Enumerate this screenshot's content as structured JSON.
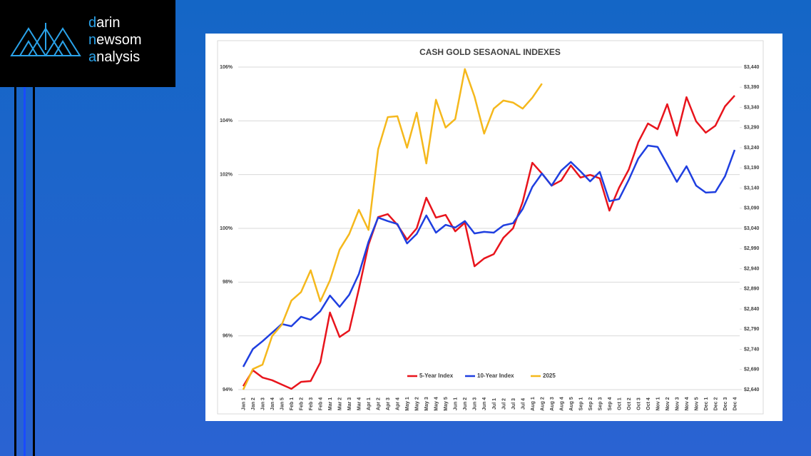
{
  "logo": {
    "lines": [
      "darin",
      "newsom",
      "analysis"
    ]
  },
  "chart_data": {
    "type": "line",
    "title": "CASH GOLD SESAONAL INDEXES",
    "categories": [
      "Jan 1",
      "Jan 2",
      "Jan 3",
      "Jan 4",
      "Jan 5",
      "Feb 1",
      "Feb 2",
      "Feb 3",
      "Feb 4",
      "Mar 1",
      "Mar 2",
      "Mar 3",
      "Mar 4",
      "Apr 1",
      "Apr 2",
      "Apr 3",
      "Apr 4",
      "May 1",
      "May 2",
      "May 3",
      "May 4",
      "May 5",
      "Jun 1",
      "Jun 2",
      "Jun 3",
      "Jun 4",
      "Jul 1",
      "Jul 2",
      "Jul 3",
      "Jul 4",
      "Aug 1",
      "Aug 2",
      "Aug 3",
      "Aug 4",
      "Aug 5",
      "Sep 1",
      "Sep 2",
      "Sep 3",
      "Sep 4",
      "Oct 1",
      "Oct 2",
      "Oct 3",
      "Oct 4",
      "Nov 1",
      "Nov 2",
      "Nov 3",
      "Nov 4",
      "Nov 5",
      "Dec 1",
      "Dec 2",
      "Dec 3",
      "Dec 4"
    ],
    "series": [
      {
        "name": "5-Year Index",
        "color": "#e8141c",
        "values": [
          94.13,
          94.72,
          94.45,
          94.35,
          94.19,
          94.03,
          94.29,
          94.32,
          95.01,
          96.87,
          95.96,
          96.2,
          97.74,
          99.39,
          100.42,
          100.53,
          100.13,
          99.58,
          100.0,
          101.14,
          100.4,
          100.5,
          99.89,
          100.21,
          98.59,
          98.88,
          99.04,
          99.65,
          100.0,
          100.98,
          102.44,
          102.04,
          101.59,
          101.78,
          102.34,
          101.89,
          101.99,
          101.86,
          100.66,
          101.51,
          102.18,
          103.21,
          103.9,
          103.69,
          104.62,
          103.45,
          104.88,
          103.98,
          103.56,
          103.82,
          104.54,
          104.94
        ]
      },
      {
        "name": "10-Year Index",
        "color": "#1f3fe0",
        "values": [
          94.85,
          95.51,
          95.8,
          96.12,
          96.44,
          96.36,
          96.71,
          96.6,
          96.92,
          97.5,
          97.08,
          97.53,
          98.3,
          99.5,
          100.4,
          100.27,
          100.16,
          99.44,
          99.79,
          100.48,
          99.84,
          100.13,
          100.03,
          100.27,
          99.81,
          99.87,
          99.84,
          100.11,
          100.19,
          100.72,
          101.54,
          102.04,
          101.59,
          102.15,
          102.47,
          102.12,
          101.75,
          102.1,
          101.01,
          101.09,
          101.8,
          102.6,
          103.08,
          103.03,
          102.39,
          101.73,
          102.31,
          101.59,
          101.33,
          101.35,
          101.94,
          102.92
        ]
      },
      {
        "name": "2025",
        "color": "#f5b81c",
        "axis": "y2",
        "values": [
          2640,
          2691,
          2702,
          2773,
          2801,
          2861,
          2882,
          2936,
          2859,
          2911,
          2987,
          3026,
          3086,
          3036,
          3236,
          3316,
          3318,
          3240,
          3327,
          3201,
          3359,
          3290,
          3311,
          3435,
          3367,
          3275,
          3337,
          3357,
          3352,
          3337,
          3364,
          3399,
          null,
          null,
          null,
          null,
          null,
          null,
          null,
          null,
          null,
          null,
          null,
          null,
          null,
          null,
          null,
          null,
          null,
          null,
          null,
          null
        ]
      }
    ],
    "ylim": [
      94,
      106
    ],
    "yticks": [
      {
        "value": 94,
        "label": "94%"
      },
      {
        "value": 96,
        "label": "96%"
      },
      {
        "value": 98,
        "label": "98%"
      },
      {
        "value": 100,
        "label": "100%"
      },
      {
        "value": 102,
        "label": "102%"
      },
      {
        "value": 104,
        "label": "104%"
      },
      {
        "value": 106,
        "label": "106%"
      }
    ],
    "y2lim": [
      2640,
      3440
    ],
    "y2ticks": [
      {
        "value": 2640,
        "label": "$2,640"
      },
      {
        "value": 2690,
        "label": "$2,690"
      },
      {
        "value": 2740,
        "label": "$2,740"
      },
      {
        "value": 2790,
        "label": "$2,790"
      },
      {
        "value": 2840,
        "label": "$2,840"
      },
      {
        "value": 2890,
        "label": "$2,890"
      },
      {
        "value": 2940,
        "label": "$2,940"
      },
      {
        "value": 2990,
        "label": "$2,990"
      },
      {
        "value": 3040,
        "label": "$3,040"
      },
      {
        "value": 3090,
        "label": "$3,090"
      },
      {
        "value": 3140,
        "label": "$3,140"
      },
      {
        "value": 3190,
        "label": "$3,190"
      },
      {
        "value": 3240,
        "label": "$3,240"
      },
      {
        "value": 3290,
        "label": "$3,290"
      },
      {
        "value": 3340,
        "label": "$3,340"
      },
      {
        "value": 3390,
        "label": "$3,390"
      },
      {
        "value": 3440,
        "label": "$3,440"
      }
    ],
    "grid": true,
    "legend": "bottom"
  }
}
